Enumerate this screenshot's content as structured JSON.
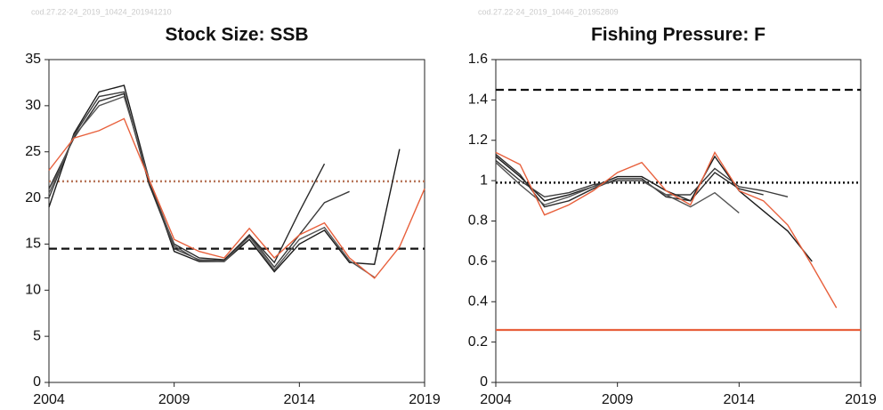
{
  "chart_data": [
    {
      "type": "line",
      "title": "Stock Size: SSB",
      "source": "cod.27.22-24_2019_10424_201941210",
      "x": [
        2004,
        2005,
        2006,
        2007,
        2008,
        2009,
        2010,
        2011,
        2012,
        2013,
        2014,
        2015,
        2016,
        2017,
        2018,
        2019
      ],
      "xlim": [
        2004,
        2019
      ],
      "xticks": [
        2004,
        2009,
        2014,
        2019
      ],
      "ylim": [
        0,
        35
      ],
      "yticks": [
        0,
        5,
        10,
        15,
        20,
        25,
        30,
        35
      ],
      "hlines": [
        {
          "value": 21.8,
          "color": "#b8765a",
          "style": "dotted"
        },
        {
          "value": 14.5,
          "color": "#111111",
          "style": "dashed"
        }
      ],
      "series": [
        {
          "color": "#1a1a1a",
          "values": [
            19,
            27,
            31.5,
            32.2,
            22,
            14.2,
            13.1,
            13.1,
            15.5,
            12,
            15,
            16.5,
            13,
            12.8,
            25.3,
            null
          ]
        },
        {
          "color": "#3a3a3a",
          "values": [
            20,
            26.8,
            31,
            31.5,
            21.5,
            14.5,
            13.3,
            13.2,
            16,
            12.5,
            16,
            19.5,
            20.7,
            null,
            null,
            null
          ]
        },
        {
          "color": "#2a2a2a",
          "values": [
            21,
            26.5,
            30.5,
            31.3,
            21.5,
            15,
            13.5,
            13.3,
            16,
            13,
            18.5,
            23.7,
            null,
            null,
            null,
            null
          ]
        },
        {
          "color": "#555555",
          "values": [
            20.5,
            26.7,
            30,
            31,
            22,
            14.8,
            13.2,
            13.1,
            15.8,
            12.2,
            15.5,
            16.8,
            13.2,
            11.4,
            null,
            null
          ]
        },
        {
          "color": "#e8603c",
          "values": [
            23,
            26.5,
            27.3,
            28.6,
            22,
            15.5,
            14.2,
            13.5,
            16.7,
            13.5,
            16,
            17.3,
            13.5,
            11.3,
            14.7,
            21
          ]
        }
      ]
    },
    {
      "type": "line",
      "title": "Fishing Pressure: F",
      "source": "cod.27.22-24_2019_10446_201952809",
      "x": [
        2004,
        2005,
        2006,
        2007,
        2008,
        2009,
        2010,
        2011,
        2012,
        2013,
        2014,
        2015,
        2016,
        2017,
        2018,
        2019
      ],
      "xlim": [
        2004,
        2019
      ],
      "xticks": [
        2004,
        2009,
        2014,
        2019
      ],
      "ylim": [
        0,
        1.6
      ],
      "yticks": [
        0,
        0.2,
        0.4,
        0.6,
        0.8,
        1,
        1.2,
        1.4,
        1.6
      ],
      "hlines": [
        {
          "value": 1.45,
          "color": "#111111",
          "style": "dashed"
        },
        {
          "value": 0.99,
          "color": "#111111",
          "style": "dotted"
        },
        {
          "value": 0.26,
          "color": "#e8603c",
          "style": "solid"
        }
      ],
      "series": [
        {
          "color": "#1a1a1a",
          "values": [
            1.12,
            1.02,
            0.9,
            0.93,
            0.97,
            1.02,
            1.02,
            0.95,
            0.9,
            1.12,
            0.95,
            0.85,
            0.75,
            0.6,
            null,
            null
          ]
        },
        {
          "color": "#3a3a3a",
          "values": [
            1.1,
            1.0,
            0.92,
            0.94,
            0.98,
            1.0,
            1.0,
            0.93,
            0.93,
            1.06,
            0.97,
            0.95,
            0.92,
            null,
            null,
            null
          ]
        },
        {
          "color": "#2a2a2a",
          "values": [
            1.13,
            1.03,
            0.87,
            0.9,
            0.96,
            1.01,
            1.01,
            0.92,
            0.9,
            1.04,
            0.96,
            0.93,
            null,
            null,
            null,
            null
          ]
        },
        {
          "color": "#555555",
          "values": [
            1.09,
            0.98,
            0.88,
            0.92,
            0.97,
            1.0,
            1.0,
            0.93,
            0.87,
            0.94,
            0.84,
            null,
            null,
            null,
            null,
            null
          ]
        },
        {
          "color": "#e8603c",
          "values": [
            1.14,
            1.08,
            0.83,
            0.88,
            0.95,
            1.04,
            1.09,
            0.95,
            0.88,
            1.14,
            0.95,
            0.9,
            0.78,
            0.58,
            0.37,
            null
          ]
        }
      ]
    }
  ]
}
